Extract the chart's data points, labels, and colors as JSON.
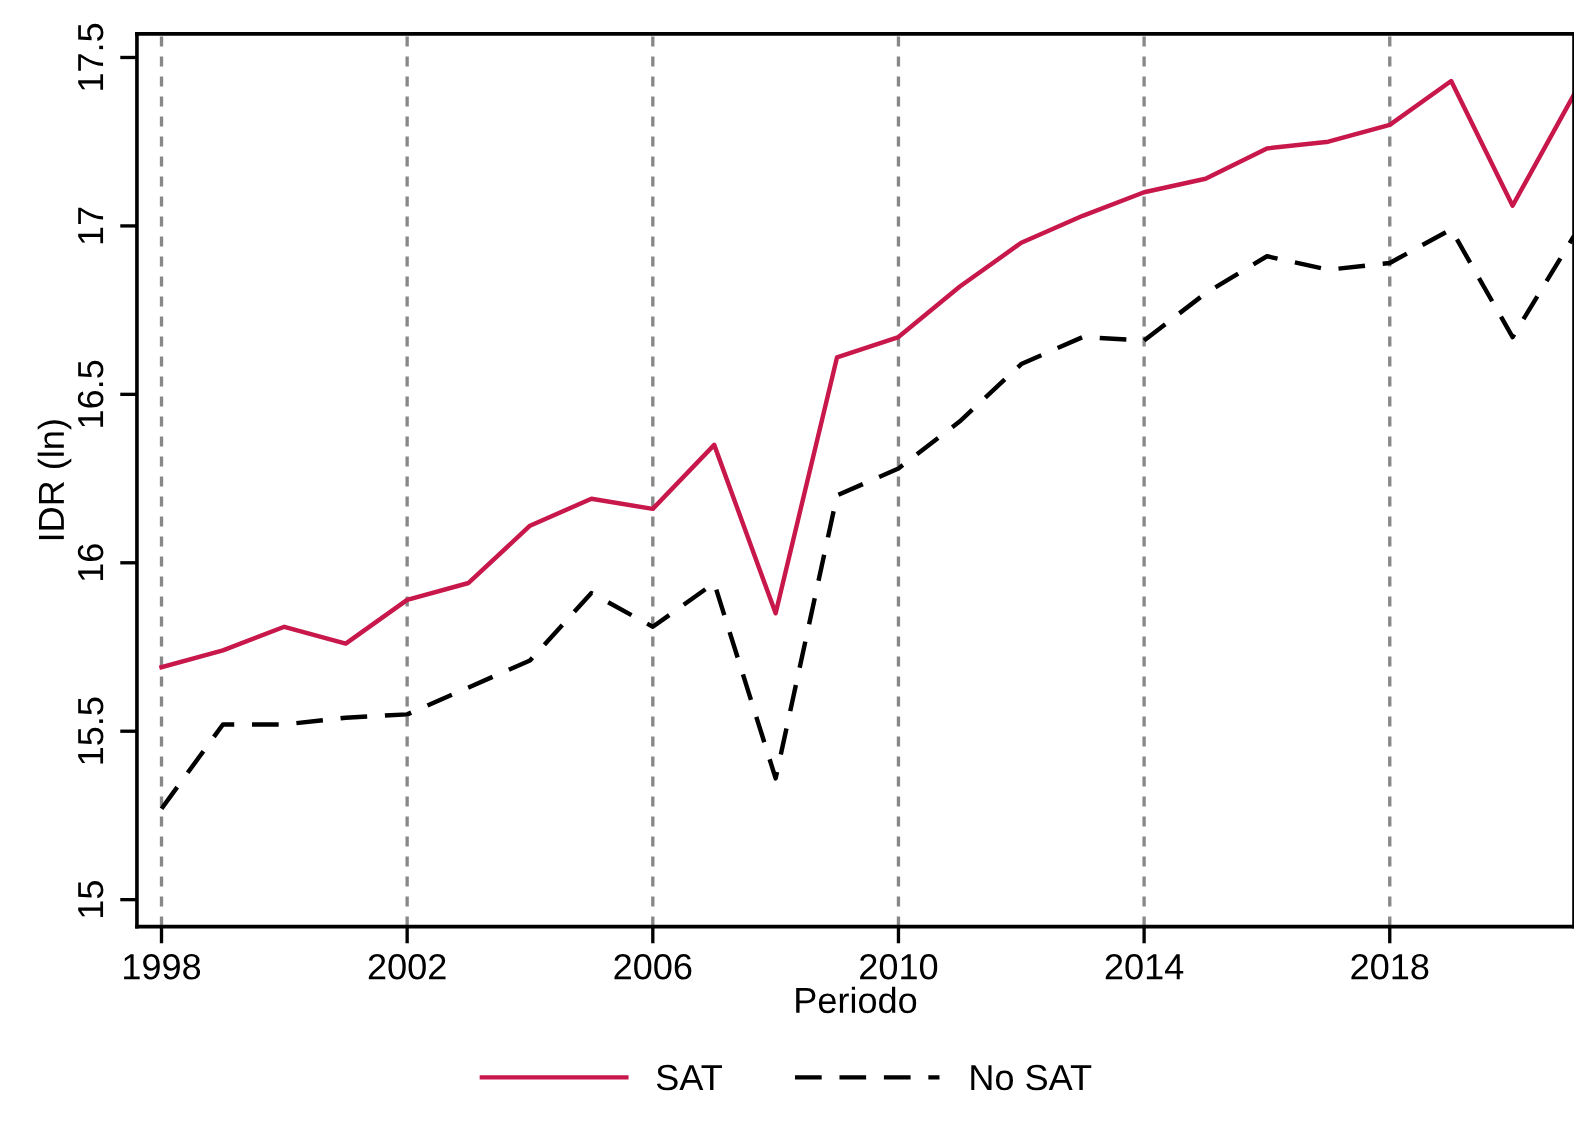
{
  "chart_data": {
    "type": "line",
    "xlabel": "Periodo",
    "ylabel": "IDR (ln)",
    "x": [
      1998,
      1999,
      2000,
      2001,
      2002,
      2003,
      2004,
      2005,
      2006,
      2007,
      2008,
      2009,
      2010,
      2011,
      2012,
      2013,
      2014,
      2015,
      2016,
      2017,
      2018,
      2019,
      2020,
      2021
    ],
    "series": [
      {
        "name": "SAT",
        "color": "#c8174a",
        "line_style": "solid",
        "values": [
          15.69,
          15.74,
          15.81,
          15.76,
          15.89,
          15.94,
          16.11,
          16.19,
          16.16,
          16.35,
          15.85,
          16.61,
          16.67,
          16.82,
          16.95,
          17.03,
          17.1,
          17.14,
          17.23,
          17.25,
          17.3,
          17.43,
          17.06,
          17.39
        ]
      },
      {
        "name": "No SAT",
        "color": "#000000",
        "line_style": "dashed",
        "values": [
          15.27,
          15.52,
          15.52,
          15.54,
          15.55,
          15.63,
          15.71,
          15.91,
          15.81,
          15.94,
          15.36,
          16.2,
          16.28,
          16.42,
          16.59,
          16.67,
          16.66,
          16.8,
          16.91,
          16.87,
          16.89,
          16.99,
          16.67,
          16.97
        ]
      }
    ],
    "xlim": [
      1997.6,
      2021
    ],
    "ylim": [
      14.92,
      17.57
    ],
    "xticks": [
      1998,
      2002,
      2006,
      2010,
      2014,
      2018
    ],
    "yticks": [
      15,
      {
        "value": 15.5,
        "label": "15.5"
      },
      16,
      {
        "value": 16.5,
        "label": "16.5"
      },
      17,
      {
        "value": 17.5,
        "label": "17.5"
      }
    ],
    "grid": "x",
    "legend": "bottom"
  }
}
